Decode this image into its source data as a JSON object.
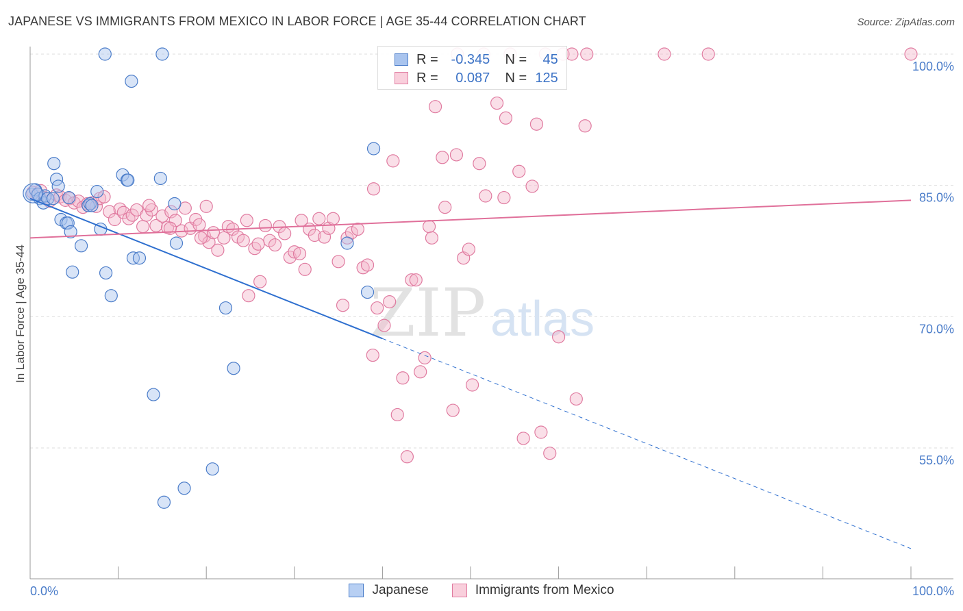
{
  "title": "JAPANESE VS IMMIGRANTS FROM MEXICO IN LABOR FORCE | AGE 35-44 CORRELATION CHART",
  "source": "Source: ZipAtlas.com",
  "colors": {
    "blue": "#4a7cc9",
    "pink": "#e07ba0",
    "blue_fill": "#a9c4ee",
    "pink_fill": "#f4b8cc",
    "blue_line": "#2e6fcf",
    "pink_line": "#e0709a"
  },
  "legend": {
    "rows": [
      {
        "r_label": "R =",
        "r_value": "-0.345",
        "n_label": "N =",
        "n_value": "45"
      },
      {
        "r_label": "R =",
        "r_value": "0.087",
        "n_label": "N =",
        "n_value": "125"
      }
    ]
  },
  "bottom_legend": {
    "series1": "Japanese",
    "series2": "Immigrants from Mexico"
  },
  "watermark": {
    "zip": "ZIP",
    "atlas": "atlas"
  },
  "chart_data": {
    "type": "scatter",
    "xlabel": "",
    "ylabel": "In Labor Force | Age 35-44",
    "xlim": [
      0,
      100
    ],
    "ylim": [
      40,
      102
    ],
    "x_tick_labels": [
      "0.0%",
      "100.0%"
    ],
    "y_ticks": [
      55,
      70,
      85,
      100
    ],
    "y_tick_labels": [
      "55.0%",
      "70.0%",
      "85.0%",
      "100.0%"
    ],
    "grid": true,
    "legend_placement": "top-center",
    "series": [
      {
        "name": "Japanese",
        "trend": {
          "x0": 0,
          "y0": 83.5,
          "x1": 40,
          "y1": 67.5,
          "dashed_to_x": 100,
          "dashed_to_y": 43.5
        },
        "points": [
          [
            0.2,
            84.0
          ],
          [
            0.6,
            84.5
          ],
          [
            0.9,
            84.0
          ],
          [
            1.1,
            83.5
          ],
          [
            1.5,
            83.0
          ],
          [
            1.7,
            83.8
          ],
          [
            2.0,
            83.5
          ],
          [
            2.6,
            83.5
          ],
          [
            2.7,
            87.5
          ],
          [
            3.0,
            85.7
          ],
          [
            3.2,
            84.9
          ],
          [
            3.5,
            81.1
          ],
          [
            4.1,
            80.7
          ],
          [
            4.3,
            80.7
          ],
          [
            4.6,
            79.7
          ],
          [
            4.8,
            75.1
          ],
          [
            5.8,
            78.1
          ],
          [
            6.6,
            82.7
          ],
          [
            6.8,
            82.9
          ],
          [
            7.0,
            82.7
          ],
          [
            7.6,
            84.3
          ],
          [
            8.0,
            80.0
          ],
          [
            8.5,
            100.0
          ],
          [
            8.6,
            75.0
          ],
          [
            9.2,
            72.4
          ],
          [
            10.5,
            86.2
          ],
          [
            11.0,
            85.6
          ],
          [
            11.1,
            85.6
          ],
          [
            11.5,
            96.9
          ],
          [
            11.7,
            76.7
          ],
          [
            12.4,
            76.7
          ],
          [
            14.0,
            61.1
          ],
          [
            14.8,
            85.8
          ],
          [
            15.0,
            100.0
          ],
          [
            15.2,
            48.8
          ],
          [
            16.4,
            82.9
          ],
          [
            16.6,
            78.4
          ],
          [
            17.5,
            50.4
          ],
          [
            20.7,
            52.6
          ],
          [
            22.2,
            71.0
          ],
          [
            23.1,
            64.1
          ],
          [
            36.0,
            78.4
          ],
          [
            38.3,
            72.8
          ],
          [
            39.0,
            89.2
          ],
          [
            4.4,
            83.6
          ]
        ]
      },
      {
        "name": "Immigrants from Mexico",
        "trend": {
          "x0": 0,
          "y0": 79.0,
          "x1": 100,
          "y1": 83.3
        },
        "points": [
          [
            0.3,
            84.2
          ],
          [
            0.8,
            84.0
          ],
          [
            1.2,
            84.4
          ],
          [
            1.6,
            83.6
          ],
          [
            2.2,
            83.2
          ],
          [
            3.0,
            83.9
          ],
          [
            3.4,
            83.7
          ],
          [
            4.0,
            83.3
          ],
          [
            4.5,
            83.5
          ],
          [
            5.0,
            83.0
          ],
          [
            5.5,
            83.2
          ],
          [
            6.0,
            82.5
          ],
          [
            6.5,
            82.9
          ],
          [
            7.0,
            83.0
          ],
          [
            7.5,
            82.6
          ],
          [
            7.9,
            83.5
          ],
          [
            8.4,
            83.7
          ],
          [
            9.0,
            82.0
          ],
          [
            9.6,
            81.1
          ],
          [
            10.2,
            82.3
          ],
          [
            10.6,
            81.9
          ],
          [
            11.2,
            81.2
          ],
          [
            11.6,
            81.6
          ],
          [
            12.1,
            82.2
          ],
          [
            12.8,
            80.3
          ],
          [
            13.2,
            81.6
          ],
          [
            13.8,
            82.2
          ],
          [
            14.3,
            80.4
          ],
          [
            15.0,
            81.5
          ],
          [
            15.6,
            80.2
          ],
          [
            16.0,
            82.0
          ],
          [
            16.5,
            81.0
          ],
          [
            17.2,
            79.8
          ],
          [
            17.6,
            82.4
          ],
          [
            18.2,
            80.1
          ],
          [
            18.8,
            81.1
          ],
          [
            19.2,
            80.5
          ],
          [
            19.8,
            79.2
          ],
          [
            20.3,
            78.5
          ],
          [
            20.8,
            79.6
          ],
          [
            21.3,
            77.6
          ],
          [
            22.0,
            79.0
          ],
          [
            22.5,
            80.3
          ],
          [
            23.0,
            80.0
          ],
          [
            23.6,
            79.1
          ],
          [
            24.2,
            78.7
          ],
          [
            24.8,
            72.4
          ],
          [
            25.5,
            77.8
          ],
          [
            26.1,
            74.0
          ],
          [
            26.7,
            80.4
          ],
          [
            27.2,
            78.7
          ],
          [
            27.8,
            78.2
          ],
          [
            28.3,
            80.3
          ],
          [
            28.9,
            79.5
          ],
          [
            29.5,
            76.8
          ],
          [
            30.0,
            77.4
          ],
          [
            30.6,
            77.2
          ],
          [
            31.2,
            75.4
          ],
          [
            31.7,
            80.0
          ],
          [
            32.3,
            79.3
          ],
          [
            32.8,
            81.2
          ],
          [
            33.4,
            79.1
          ],
          [
            33.9,
            80.1
          ],
          [
            34.4,
            81.2
          ],
          [
            35.0,
            76.3
          ],
          [
            35.5,
            71.3
          ],
          [
            36.0,
            79.0
          ],
          [
            36.5,
            79.6
          ],
          [
            37.2,
            80.0
          ],
          [
            37.8,
            75.6
          ],
          [
            38.3,
            75.9
          ],
          [
            39.0,
            84.6
          ],
          [
            38.9,
            65.6
          ],
          [
            39.4,
            71.0
          ],
          [
            40.2,
            69.0
          ],
          [
            40.8,
            71.7
          ],
          [
            41.2,
            87.8
          ],
          [
            41.7,
            58.8
          ],
          [
            42.3,
            63.0
          ],
          [
            42.8,
            54.0
          ],
          [
            43.3,
            74.2
          ],
          [
            43.8,
            74.2
          ],
          [
            44.3,
            63.7
          ],
          [
            44.8,
            65.3
          ],
          [
            45.3,
            80.3
          ],
          [
            45.6,
            79.0
          ],
          [
            46.0,
            94.0
          ],
          [
            46.8,
            88.2
          ],
          [
            47.1,
            82.5
          ],
          [
            48.0,
            59.3
          ],
          [
            48.4,
            88.5
          ],
          [
            49.2,
            76.7
          ],
          [
            49.8,
            77.7
          ],
          [
            50.2,
            62.2
          ],
          [
            51.0,
            87.5
          ],
          [
            51.5,
            100.0
          ],
          [
            51.7,
            83.8
          ],
          [
            53.0,
            94.4
          ],
          [
            53.8,
            83.6
          ],
          [
            54.0,
            92.7
          ],
          [
            55.5,
            86.6
          ],
          [
            56.0,
            56.1
          ],
          [
            57.0,
            84.9
          ],
          [
            57.5,
            92.0
          ],
          [
            58.0,
            56.8
          ],
          [
            58.5,
            100.0
          ],
          [
            59.0,
            54.4
          ],
          [
            60.0,
            67.7
          ],
          [
            60.5,
            100.0
          ],
          [
            62.0,
            60.6
          ],
          [
            63.0,
            91.8
          ],
          [
            63.2,
            100.0
          ],
          [
            72.0,
            100.0
          ],
          [
            77.0,
            100.0
          ],
          [
            100.0,
            100.0
          ],
          [
            48.5,
            100.0
          ],
          [
            61.5,
            100.0
          ],
          [
            54.5,
            100.0
          ],
          [
            30.8,
            81.0
          ],
          [
            24.6,
            81.0
          ],
          [
            20.0,
            82.6
          ],
          [
            13.5,
            82.7
          ],
          [
            15.9,
            80.1
          ],
          [
            19.4,
            79.0
          ],
          [
            25.9,
            78.3
          ]
        ]
      }
    ]
  }
}
